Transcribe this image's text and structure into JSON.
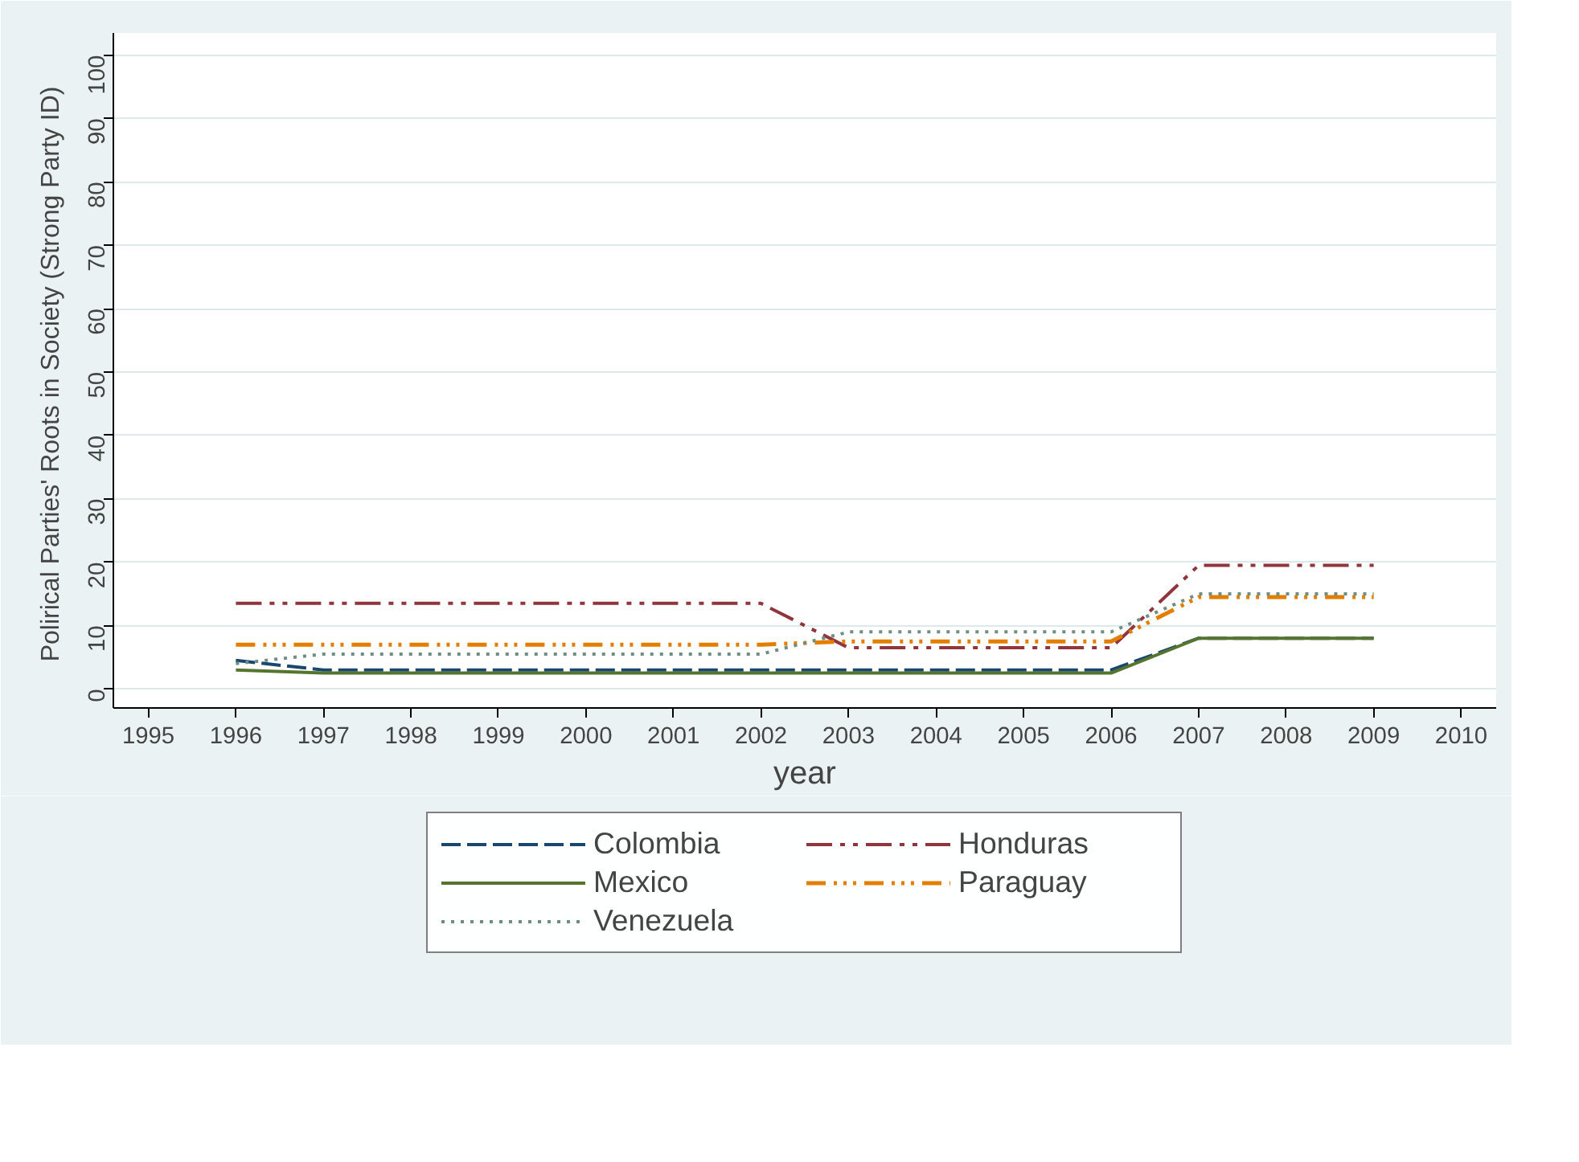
{
  "chart_data": {
    "type": "line",
    "xlabel": "year",
    "ylabel": "Polirical Parties' Roots in Society  (Strong Party ID)",
    "x": [
      1996,
      1997,
      1998,
      1999,
      2000,
      2001,
      2002,
      2003,
      2004,
      2005,
      2006,
      2007,
      2008,
      2009
    ],
    "series": [
      {
        "name": "Colombia",
        "color": "#1a476f",
        "line_style": "dashed",
        "values": [
          4.5,
          3,
          3,
          3,
          3,
          3,
          3,
          3,
          3,
          3,
          3,
          8,
          8,
          8
        ]
      },
      {
        "name": "Honduras",
        "color": "#90353b",
        "line_style": "dashdot",
        "values": [
          13.5,
          13.5,
          13.5,
          13.5,
          13.5,
          13.5,
          13.5,
          6.5,
          6.5,
          6.5,
          6.5,
          19.5,
          19.5,
          19.5
        ]
      },
      {
        "name": "Mexico",
        "color": "#55752f",
        "line_style": "solid",
        "values": [
          3,
          2.5,
          2.5,
          2.5,
          2.5,
          2.5,
          2.5,
          2.5,
          2.5,
          2.5,
          2.5,
          8,
          8,
          8
        ]
      },
      {
        "name": "Paraguay",
        "color": "#e37e00",
        "line_style": "longdashdotdotdot",
        "values": [
          7,
          7,
          7,
          7,
          7,
          7,
          7,
          7.5,
          7.5,
          7.5,
          7.5,
          14.5,
          14.5,
          14.5
        ]
      },
      {
        "name": "Venezuela",
        "color": "#6e8e84",
        "line_style": "dotted",
        "values": [
          4,
          5.5,
          5.5,
          5.5,
          5.5,
          5.5,
          5.5,
          9,
          9,
          9,
          9,
          15,
          15,
          15
        ]
      }
    ],
    "xlim": [
      1994.6,
      2010.4
    ],
    "xticks": [
      1995,
      1996,
      1997,
      1998,
      1999,
      2000,
      2001,
      2002,
      2003,
      2004,
      2005,
      2006,
      2007,
      2008,
      2009,
      2010
    ],
    "ylim": [
      -3,
      103.5
    ],
    "yticks": [
      0,
      10,
      20,
      30,
      40,
      50,
      60,
      70,
      80,
      90,
      100
    ],
    "grid": "y",
    "legend": "bottom",
    "marker": "none"
  }
}
